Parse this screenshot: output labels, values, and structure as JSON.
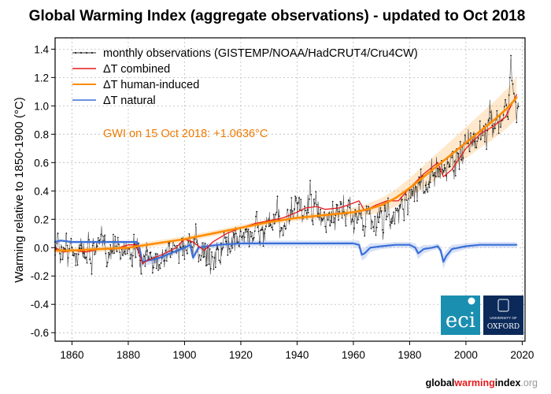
{
  "chart_data": {
    "type": "line",
    "title": "Global Warming Index (aggregate observations) - updated to Oct 2018",
    "xlabel": "",
    "ylabel": "Warming relative to 1850-1900 (°C)",
    "xlim": [
      1854,
      2021
    ],
    "ylim": [
      -0.66,
      1.48
    ],
    "xticks": [
      1860,
      1880,
      1900,
      1920,
      1940,
      1960,
      1980,
      2000,
      2020
    ],
    "yticks": [
      -0.6,
      -0.4,
      -0.2,
      0.0,
      0.2,
      0.4,
      0.6,
      0.8,
      1.0,
      1.2,
      1.4
    ],
    "ytick_labels": [
      "-0.6",
      "-0.4",
      "-0.2",
      "0.0",
      "0.2",
      "0.4",
      "0.6",
      "0.8",
      "1.0",
      "1.2",
      "1.4"
    ],
    "grid": true,
    "legend_position": "top-left",
    "annotation": "GWI on 15 Oct 2018: +1.0636°C",
    "annotation_color": "#ee7a00",
    "series": [
      {
        "name": "monthly observations (GISTEMP/NOAA/HadCRUT4/Cru4CW)",
        "color": "#333333",
        "style": "noisy-points",
        "trend_x": [
          1854,
          1860,
          1870,
          1880,
          1885,
          1890,
          1900,
          1910,
          1920,
          1930,
          1940,
          1945,
          1950,
          1960,
          1965,
          1970,
          1975,
          1980,
          1990,
          2000,
          2005,
          2010,
          2015,
          2016,
          2018
        ],
        "trend_y": [
          0.02,
          -0.02,
          -0.01,
          0.0,
          -0.12,
          -0.08,
          0.02,
          -0.06,
          0.08,
          0.14,
          0.24,
          0.3,
          0.18,
          0.25,
          0.22,
          0.2,
          0.22,
          0.38,
          0.52,
          0.7,
          0.8,
          0.86,
          1.02,
          1.24,
          1.0
        ],
        "noise_sd": 0.12
      },
      {
        "name": "ΔT combined",
        "color": "#e8191c",
        "x": [
          1854,
          1857,
          1860,
          1865,
          1870,
          1875,
          1880,
          1883,
          1885,
          1888,
          1892,
          1897,
          1900,
          1903,
          1907,
          1910,
          1915,
          1920,
          1925,
          1930,
          1935,
          1940,
          1943,
          1947,
          1950,
          1955,
          1958,
          1962,
          1964,
          1968,
          1972,
          1976,
          1980,
          1985,
          1990,
          1992,
          1995,
          2000,
          2005,
          2010,
          2014,
          2018
        ],
        "y": [
          0.0,
          -0.03,
          -0.02,
          -0.03,
          -0.01,
          -0.01,
          0.02,
          0.02,
          -0.11,
          -0.08,
          -0.05,
          0.0,
          0.06,
          0.04,
          -0.02,
          0.04,
          0.1,
          0.14,
          0.17,
          0.19,
          0.21,
          0.25,
          0.28,
          0.29,
          0.27,
          0.28,
          0.3,
          0.33,
          0.26,
          0.3,
          0.33,
          0.33,
          0.42,
          0.52,
          0.6,
          0.5,
          0.55,
          0.7,
          0.8,
          0.86,
          0.92,
          1.08
        ]
      },
      {
        "name": "ΔT human-induced",
        "color": "#ff8c00",
        "uncertainty_band": true,
        "x": [
          1854,
          1860,
          1870,
          1880,
          1890,
          1900,
          1910,
          1920,
          1930,
          1940,
          1950,
          1960,
          1965,
          1970,
          1975,
          1980,
          1985,
          1990,
          1995,
          2000,
          2005,
          2010,
          2015,
          2018
        ],
        "y": [
          -0.02,
          -0.02,
          -0.01,
          0.0,
          0.03,
          0.06,
          0.1,
          0.14,
          0.18,
          0.21,
          0.23,
          0.25,
          0.27,
          0.3,
          0.35,
          0.42,
          0.5,
          0.58,
          0.66,
          0.74,
          0.82,
          0.9,
          0.99,
          1.06
        ],
        "band_halfwidth": [
          0.02,
          0.02,
          0.02,
          0.02,
          0.02,
          0.02,
          0.02,
          0.02,
          0.02,
          0.02,
          0.02,
          0.03,
          0.04,
          0.05,
          0.06,
          0.07,
          0.08,
          0.09,
          0.1,
          0.11,
          0.12,
          0.13,
          0.14,
          0.15
        ]
      },
      {
        "name": "ΔT natural",
        "color": "#3a6fd8",
        "uncertainty_band": true,
        "x": [
          1854,
          1856,
          1860,
          1865,
          1870,
          1875,
          1880,
          1883,
          1884,
          1885,
          1887,
          1890,
          1895,
          1900,
          1902,
          1903,
          1905,
          1908,
          1912,
          1920,
          1930,
          1940,
          1950,
          1955,
          1960,
          1962,
          1963,
          1964,
          1966,
          1970,
          1975,
          1980,
          1982,
          1983,
          1985,
          1988,
          1990,
          1991,
          1992,
          1993,
          1995,
          2000,
          2005,
          2010,
          2018
        ],
        "y": [
          0.04,
          0.05,
          0.04,
          0.04,
          0.04,
          0.04,
          0.04,
          0.04,
          0.0,
          -0.1,
          -0.09,
          -0.08,
          -0.04,
          0.0,
          0.02,
          -0.07,
          0.0,
          0.01,
          0.02,
          0.03,
          0.03,
          0.03,
          0.03,
          0.03,
          0.03,
          0.02,
          -0.05,
          -0.04,
          0.0,
          0.01,
          0.02,
          0.02,
          0.0,
          -0.04,
          -0.01,
          0.0,
          0.01,
          -0.02,
          -0.1,
          -0.06,
          -0.01,
          0.01,
          0.02,
          0.02,
          0.02
        ],
        "band_halfwidth": [
          0.01,
          0.01,
          0.01,
          0.01,
          0.01,
          0.01,
          0.01,
          0.01,
          0.02,
          0.03,
          0.03,
          0.03,
          0.02,
          0.02,
          0.02,
          0.03,
          0.02,
          0.02,
          0.02,
          0.02,
          0.02,
          0.02,
          0.02,
          0.02,
          0.02,
          0.03,
          0.04,
          0.04,
          0.03,
          0.02,
          0.02,
          0.02,
          0.03,
          0.04,
          0.03,
          0.02,
          0.02,
          0.03,
          0.05,
          0.04,
          0.03,
          0.02,
          0.02,
          0.02,
          0.02
        ]
      }
    ]
  },
  "logos": {
    "eci": {
      "text": "eci",
      "bg": "#1a8fb0"
    },
    "oxford": {
      "small": "UNIVERSITY OF",
      "text": "OXFORD",
      "bg": "#0b2a5a"
    }
  },
  "footer": {
    "part1": "global",
    "part2": "warming",
    "part3": "index",
    "part4": ".org"
  }
}
